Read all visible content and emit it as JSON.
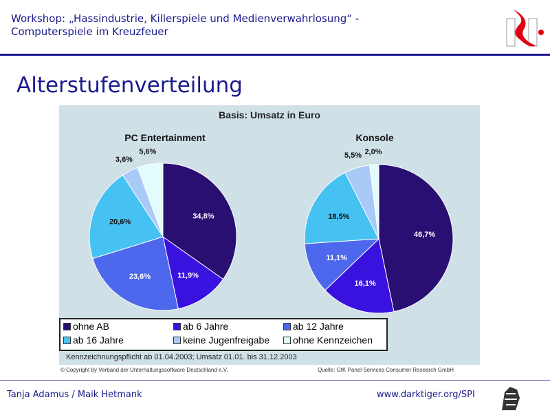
{
  "header": {
    "line1": "Workshop: „Hassindustrie, Killerspiele und Medienverwahrlosung“ -",
    "line2": "Computerspiele im Kreuzfeuer"
  },
  "slide_title": "Alterstufenverteilung",
  "footer": {
    "authors": "Tanja Adamus / Maik Hetmank",
    "url": "www.darktiger.org/SPI"
  },
  "chart_data": {
    "type": "pie",
    "title": "Basis: Umsatz in Euro",
    "categories": [
      "ohne AB",
      "ab 6 Jahre",
      "ab 12 Jahre",
      "ab 16 Jahre",
      "keine Jugenfreigabe",
      "ohne Kennzeichen"
    ],
    "colors": [
      "#2a0f72",
      "#3a12e0",
      "#4d68ec",
      "#46c2f2",
      "#a9c9f7",
      "#e2fbfd"
    ],
    "charts": [
      {
        "title": "PC Entertainment",
        "values": [
          34.8,
          11.9,
          23.6,
          20.6,
          3.6,
          5.6
        ],
        "labels": [
          "34,8%",
          "11,9%",
          "23,6%",
          "20,6%",
          "3,6%",
          "5,6%"
        ]
      },
      {
        "title": "Konsole",
        "values": [
          46.7,
          16.1,
          11.1,
          18.5,
          5.5,
          2.0
        ],
        "labels": [
          "46,7%",
          "16,1%",
          "11,1%",
          "18,5%",
          "5,5%",
          "2,0%"
        ]
      }
    ],
    "legend_position": "bottom",
    "note": "Kennzeichnungspflicht ab 01.04.2003; Umsatz 01.01. bis 31.12.2003",
    "copyright": "© Copyright by Verband der Unterhaltungssoftware Deutschland e.V.",
    "source": "Quelle: GfK Panel Services Consumer Research GmbH"
  }
}
